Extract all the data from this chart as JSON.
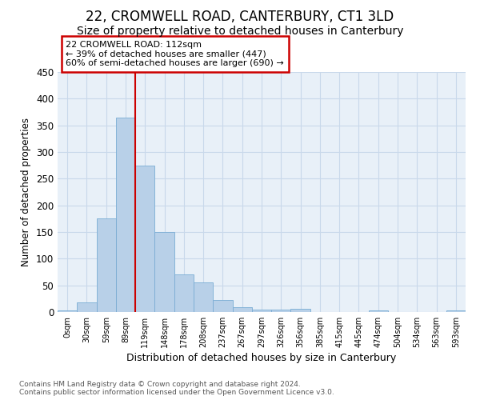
{
  "title": "22, CROMWELL ROAD, CANTERBURY, CT1 3LD",
  "subtitle": "Size of property relative to detached houses in Canterbury",
  "xlabel": "Distribution of detached houses by size in Canterbury",
  "ylabel": "Number of detached properties",
  "bar_labels": [
    "0sqm",
    "30sqm",
    "59sqm",
    "89sqm",
    "119sqm",
    "148sqm",
    "178sqm",
    "208sqm",
    "237sqm",
    "267sqm",
    "297sqm",
    "326sqm",
    "356sqm",
    "385sqm",
    "415sqm",
    "445sqm",
    "474sqm",
    "504sqm",
    "534sqm",
    "563sqm",
    "593sqm"
  ],
  "bar_values": [
    3,
    18,
    175,
    365,
    275,
    150,
    70,
    55,
    23,
    9,
    5,
    5,
    6,
    0,
    0,
    0,
    3,
    0,
    0,
    0,
    3
  ],
  "bar_color": "#b8d0e8",
  "bar_edge_color": "#7aacd4",
  "vline_color": "#cc0000",
  "annotation_text": "22 CROMWELL ROAD: 112sqm\n← 39% of detached houses are smaller (447)\n60% of semi-detached houses are larger (690) →",
  "annotation_box_color": "#cc0000",
  "ylim": [
    0,
    450
  ],
  "yticks": [
    0,
    50,
    100,
    150,
    200,
    250,
    300,
    350,
    400,
    450
  ],
  "grid_color": "#c8d8ea",
  "bg_color": "#e8f0f8",
  "footer": "Contains HM Land Registry data © Crown copyright and database right 2024.\nContains public sector information licensed under the Open Government Licence v3.0.",
  "title_fontsize": 12,
  "subtitle_fontsize": 10,
  "vline_bar_index": 4
}
